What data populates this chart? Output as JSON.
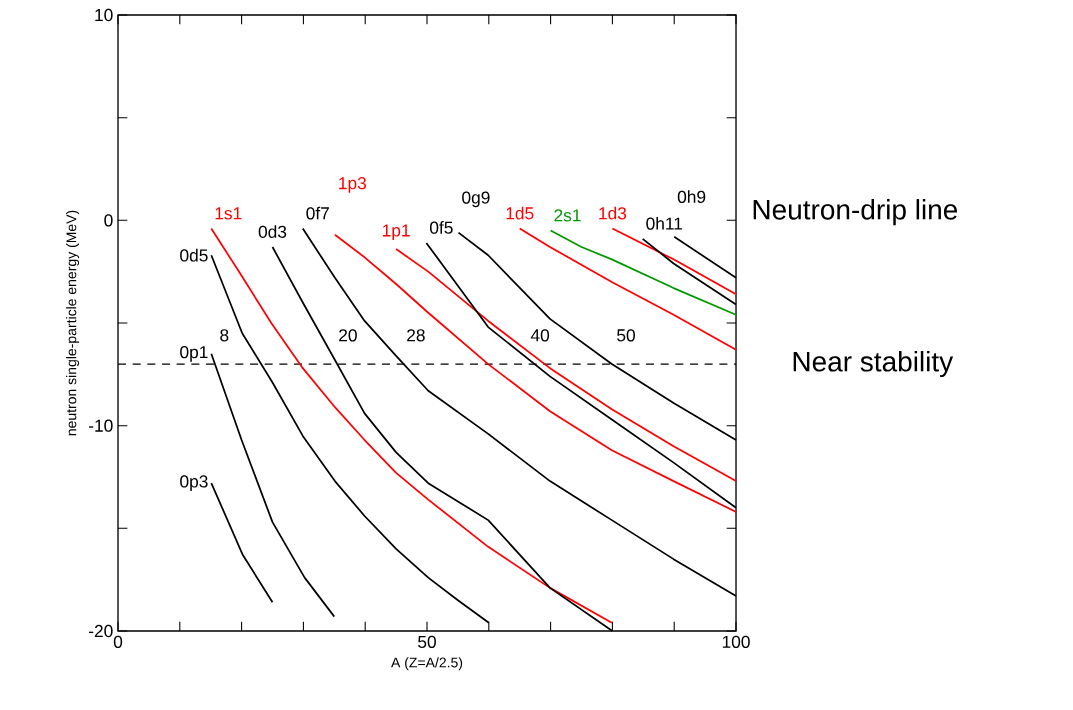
{
  "chart_data": {
    "type": "line",
    "xlabel": "A (Z=A/2.5)",
    "ylabel": "neutron single-particle energy (MeV)",
    "xlim": [
      0,
      100
    ],
    "ylim": [
      -20,
      10
    ],
    "xticks": [
      0,
      {
        "value": 10,
        "label": null
      },
      {
        "value": 20,
        "label": null
      },
      {
        "value": 30,
        "label": null
      },
      {
        "value": 40,
        "label": null
      },
      50,
      {
        "value": 60,
        "label": null
      },
      {
        "value": 70,
        "label": null
      },
      {
        "value": 80,
        "label": null
      },
      {
        "value": 90,
        "label": null
      },
      100
    ],
    "yticks": [
      -20,
      {
        "value": -15,
        "label": null
      },
      -10,
      {
        "value": -5,
        "label": null
      },
      0,
      {
        "value": 5,
        "label": null
      },
      10
    ],
    "grid": false,
    "marker": "none",
    "line_style": "solid",
    "series": [
      {
        "name": "0p3",
        "color": "#000000",
        "x": [
          15.1,
          20.2,
          25.0
        ],
        "values": [
          -12.8,
          -16.3,
          -18.6
        ]
      },
      {
        "name": "0p1",
        "color": "#000000",
        "x": [
          15.1,
          20.0,
          25.0,
          30.2,
          35.0
        ],
        "values": [
          -6.5,
          -10.7,
          -14.7,
          -17.4,
          -19.3
        ]
      },
      {
        "name": "0d5",
        "color": "#000000",
        "x": [
          15.1,
          20.1,
          25.0,
          29.9,
          35.1,
          39.9,
          45.0,
          50.2,
          55.0,
          60.0
        ],
        "values": [
          -1.7,
          -5.5,
          -7.9,
          -10.5,
          -12.7,
          -14.4,
          -16.0,
          -17.4,
          -18.5,
          -19.6
        ]
      },
      {
        "name": "1s1",
        "color": "#ff0000",
        "x": [
          15.1,
          20.0,
          24.8,
          29.9,
          35.1,
          39.9,
          45.0,
          50.2,
          59.9,
          69.9,
          79.9
        ],
        "values": [
          -0.4,
          -2.7,
          -5.0,
          -7.2,
          -9.1,
          -10.7,
          -12.3,
          -13.6,
          -15.9,
          -17.9,
          -19.6
        ]
      },
      {
        "name": "0d3",
        "color": "#000000",
        "x": [
          25.0,
          29.9,
          35.1,
          39.9,
          45.0,
          50.2,
          59.9,
          69.9,
          80.0
        ],
        "values": [
          -1.3,
          -4.0,
          -6.8,
          -9.4,
          -11.3,
          -12.8,
          -14.6,
          -17.9,
          -20.0
        ]
      },
      {
        "name": "0f7",
        "color": "#000000",
        "x": [
          29.9,
          35.1,
          39.9,
          45.0,
          50.2,
          59.9,
          69.9,
          79.9,
          89.9,
          100
        ],
        "values": [
          -0.4,
          -2.8,
          -4.9,
          -6.6,
          -8.3,
          -10.4,
          -12.7,
          -14.6,
          -16.5,
          -18.3
        ]
      },
      {
        "name": "1p3",
        "color": "#ff0000",
        "x": [
          35.1,
          39.9,
          45.0,
          50.2,
          59.9,
          69.9,
          79.9,
          89.9,
          100
        ],
        "values": [
          -0.7,
          -1.8,
          -3.1,
          -4.5,
          -7.0,
          -9.3,
          -11.2,
          -12.7,
          -14.2
        ]
      },
      {
        "name": "1p1",
        "color": "#ff0000",
        "x": [
          45.0,
          50.2,
          59.9,
          69.9,
          79.9,
          89.9,
          100
        ],
        "values": [
          -1.4,
          -2.5,
          -4.9,
          -7.2,
          -9.2,
          -11.0,
          -12.7
        ]
      },
      {
        "name": "0f5",
        "color": "#000000",
        "x": [
          49.9,
          59.9,
          69.9,
          79.9,
          89.9,
          100
        ],
        "values": [
          -1.1,
          -5.2,
          -7.6,
          -9.7,
          -11.8,
          -14.0
        ]
      },
      {
        "name": "0g9",
        "color": "#000000",
        "x": [
          55.1,
          59.9,
          69.9,
          79.9,
          89.9,
          100
        ],
        "values": [
          -0.6,
          -1.7,
          -4.8,
          -7.0,
          -8.9,
          -10.7
        ]
      },
      {
        "name": "1d5",
        "color": "#ff0000",
        "x": [
          65.0,
          69.9,
          79.9,
          89.9,
          100
        ],
        "values": [
          -0.4,
          -1.3,
          -3.0,
          -4.6,
          -6.3
        ]
      },
      {
        "name": "2s1",
        "color": "#009900",
        "x": [
          70.0,
          75.0,
          79.9,
          89.9,
          100
        ],
        "values": [
          -0.5,
          -1.3,
          -1.9,
          -3.3,
          -4.6
        ]
      },
      {
        "name": "1d3",
        "color": "#ff0000",
        "x": [
          80.0,
          89.9,
          100
        ],
        "values": [
          -0.4,
          -1.9,
          -3.6
        ]
      },
      {
        "name": "0h11",
        "color": "#000000",
        "x": [
          84.9,
          89.9,
          100
        ],
        "values": [
          -0.9,
          -2.1,
          -4.1
        ]
      },
      {
        "name": "0h9",
        "color": "#000000",
        "x": [
          90.0,
          100
        ],
        "values": [
          -0.8,
          -2.8
        ]
      }
    ],
    "ref_lines": [
      {
        "axis": "y",
        "value": -7,
        "label": "Near stability",
        "line_style": "dashed",
        "color": "#000000"
      }
    ],
    "annotations": [
      "8",
      "20",
      "28",
      "40",
      "50",
      "Neutron-drip line"
    ]
  }
}
